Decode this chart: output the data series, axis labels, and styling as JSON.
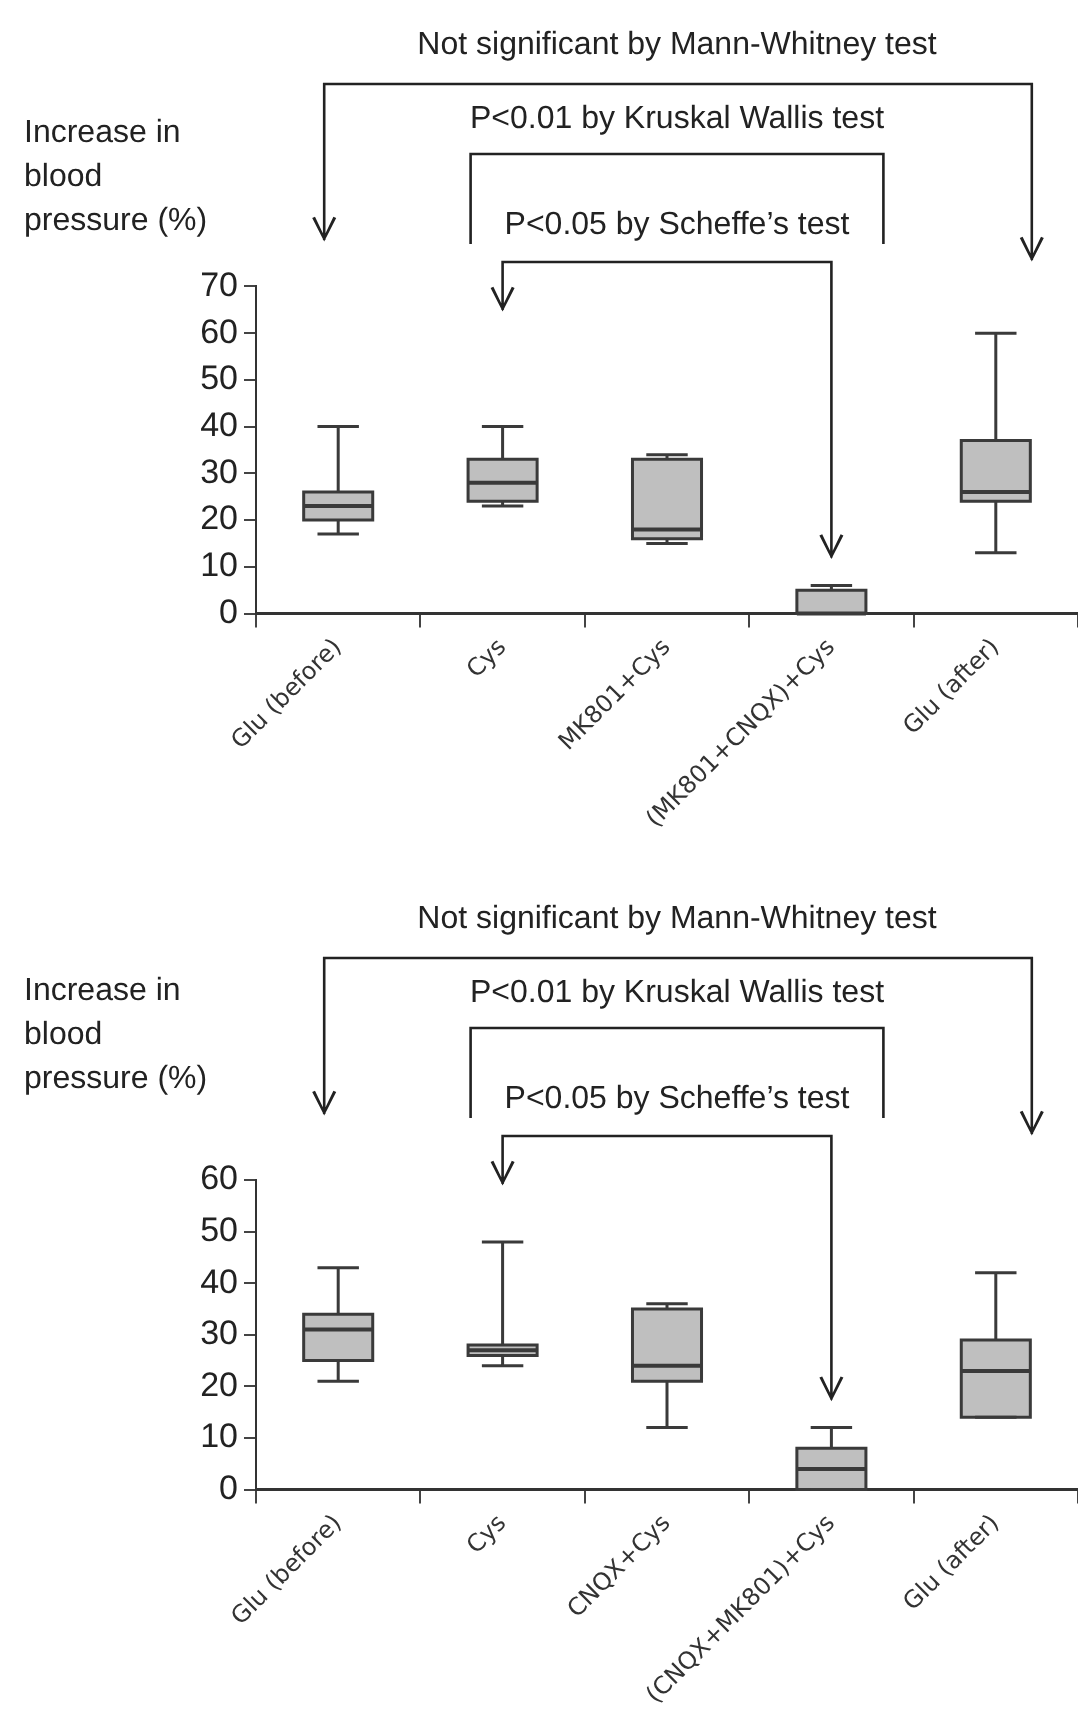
{
  "chart_data": [
    {
      "type": "box",
      "ylabel": "Increase in blood pressure (%)",
      "categories": [
        "Glu (before)",
        "Cys",
        "MK801+Cys",
        "(MK801+CNQX)+Cys",
        "Glu (after)"
      ],
      "series": [
        {
          "color": "#bfbfbf",
          "boxes": [
            {
              "low": 17,
              "q1": 20,
              "median": 23,
              "q3": 26,
              "high": 40
            },
            {
              "low": 23,
              "q1": 24,
              "median": 28,
              "q3": 33,
              "high": 40
            },
            {
              "low": 15,
              "q1": 16,
              "median": 18,
              "q3": 33,
              "high": 34
            },
            {
              "low": 0,
              "q1": 0,
              "median": 0,
              "q3": 5,
              "high": 6
            },
            {
              "low": 13,
              "q1": 24,
              "median": 26,
              "q3": 37,
              "high": 60
            }
          ]
        }
      ],
      "ylim": [
        0,
        70
      ],
      "yticks": [
        0,
        10,
        20,
        30,
        40,
        50,
        60,
        70
      ],
      "annotations": [
        "Not significant by Mann-Whitney test",
        "P<0.01 by Kruskal Wallis test",
        "P<0.05 by Scheffe’s test"
      ]
    },
    {
      "type": "box",
      "ylabel": "Increase in blood pressure (%)",
      "categories": [
        "Glu (before)",
        "Cys",
        "CNQX+Cys",
        "(CNQX+MK801)+Cys",
        "Glu (after)"
      ],
      "series": [
        {
          "color": "#bfbfbf",
          "boxes": [
            {
              "low": 21,
              "q1": 25,
              "median": 31,
              "q3": 34,
              "high": 43
            },
            {
              "low": 24,
              "q1": 26,
              "median": 27,
              "q3": 28,
              "high": 48
            },
            {
              "low": 12,
              "q1": 21,
              "median": 24,
              "q3": 35,
              "high": 36
            },
            {
              "low": 0,
              "q1": 0,
              "median": 4,
              "q3": 8,
              "high": 12
            },
            {
              "low": 14,
              "q1": 14,
              "median": 23,
              "q3": 29,
              "high": 42
            }
          ]
        }
      ],
      "ylim": [
        0,
        60
      ],
      "yticks": [
        0,
        10,
        20,
        30,
        40,
        50,
        60
      ],
      "annotations": [
        "Not significant by Mann-Whitney test",
        "P<0.01 by Kruskal Wallis test",
        "P<0.05 by Scheffe’s test"
      ]
    }
  ]
}
